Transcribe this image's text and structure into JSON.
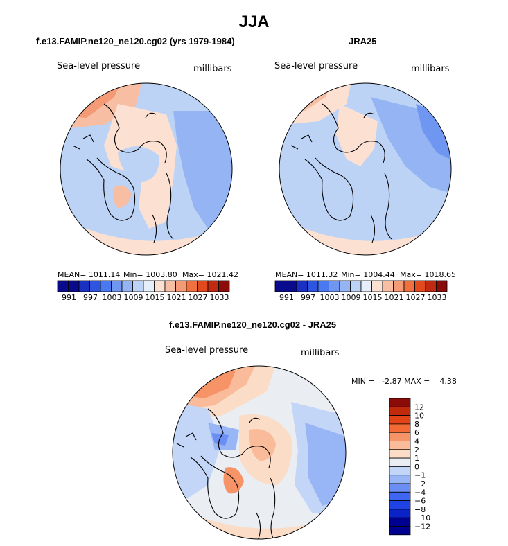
{
  "main_title": "JJA",
  "panels": [
    {
      "title": "f.e13.FAMIP.ne120_ne120.cg02 (yrs 1979-1984)",
      "field_label": "Sea-level pressure",
      "units": "millibars",
      "stats": {
        "mean": "MEAN= 1011.14",
        "min": "Min= 1003.80",
        "max": "Max= 1021.42"
      }
    },
    {
      "title": "JRA25",
      "field_label": "Sea-level pressure",
      "units": "millibars",
      "stats": {
        "mean": "MEAN= 1011.32",
        "min": "Min= 1004.44",
        "max": "Max= 1018.65"
      }
    },
    {
      "title": "f.e13.FAMIP.ne120_ne120.cg02 - JRA25",
      "field_label": "Sea-level pressure",
      "units": "millibars",
      "stats": {
        "minmax": "MIN =   -2.87 MAX =    4.38"
      }
    }
  ],
  "chart_data": [
    {
      "type": "heatmap",
      "projection": "north-polar-stereographic",
      "title": "f.e13.FAMIP.ne120_ne120.cg02 (yrs 1979-1984)",
      "field": "Sea-level pressure",
      "units": "millibars",
      "mean": 1011.14,
      "min": 1003.8,
      "max": 1021.42,
      "colorbar_levels": [
        991,
        994,
        997,
        1000,
        1003,
        1006,
        1009,
        1012,
        1015,
        1018,
        1021,
        1024,
        1027,
        1030,
        1033
      ],
      "colorbar_tick_labels": [
        "991",
        "997",
        "1003",
        "1009",
        "1015",
        "1021",
        "1027",
        "1033"
      ],
      "colorbar_orientation": "horizontal"
    },
    {
      "type": "heatmap",
      "projection": "north-polar-stereographic",
      "title": "JRA25",
      "field": "Sea-level pressure",
      "units": "millibars",
      "mean": 1011.32,
      "min": 1004.44,
      "max": 1018.65,
      "colorbar_levels": [
        991,
        994,
        997,
        1000,
        1003,
        1006,
        1009,
        1012,
        1015,
        1018,
        1021,
        1024,
        1027,
        1030,
        1033
      ],
      "colorbar_tick_labels": [
        "991",
        "997",
        "1003",
        "1009",
        "1015",
        "1021",
        "1027",
        "1033"
      ],
      "colorbar_orientation": "horizontal"
    },
    {
      "type": "heatmap",
      "projection": "north-polar-stereographic",
      "title": "f.e13.FAMIP.ne120_ne120.cg02 - JRA25",
      "field": "Sea-level pressure",
      "units": "millibars",
      "min": -2.87,
      "max": 4.38,
      "colorbar_levels": [
        -12,
        -10,
        -8,
        -6,
        -4,
        -2,
        -1,
        0,
        1,
        2,
        4,
        6,
        8,
        10,
        12
      ],
      "colorbar_tick_labels": [
        "-12",
        "-10",
        "-8",
        "-6",
        "-4",
        "-2",
        "-1",
        "0",
        "1",
        "2",
        "4",
        "6",
        "8",
        "10",
        "12"
      ],
      "colorbar_orientation": "vertical"
    }
  ],
  "colors": {
    "abs_palette": [
      "#0a0a8c",
      "#1a30c0",
      "#2d55e0",
      "#4a78f0",
      "#6f97f2",
      "#95b4f3",
      "#bcd3f6",
      "#e6eef9",
      "#fce1d3",
      "#f8bea3",
      "#f59a76",
      "#f0713f",
      "#e24a1e",
      "#c02a10",
      "#8a0b08"
    ],
    "diff_palette": [
      "#000090",
      "#0a22c8",
      "#1f43e2",
      "#3e66f2",
      "#6a8ef3",
      "#98b6f6",
      "#c3d6f8",
      "#eaeef3",
      "#fbdcc7",
      "#f9bb99",
      "#f69468",
      "#f26a36",
      "#e24418",
      "#c22a0c",
      "#8b0b06"
    ],
    "land_outline": "#000000"
  }
}
